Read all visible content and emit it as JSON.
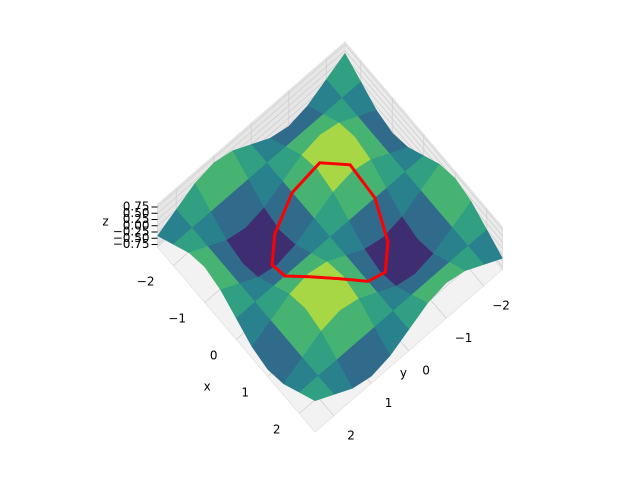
{
  "chart_data": {
    "type": "surface3d",
    "colormap": "viridis",
    "x_label": "x",
    "y_label": "y",
    "z_label": "z",
    "xlim": [
      -2.5,
      2.5
    ],
    "ylim": [
      -2.5,
      2.5
    ],
    "zlim": [
      -0.85,
      0.85
    ],
    "xticks": [
      {
        "value": -2,
        "label": "−2"
      },
      {
        "value": -1,
        "label": "−1"
      },
      0,
      1,
      2
    ],
    "yticks": [
      {
        "value": -2,
        "label": "−2"
      },
      {
        "value": -1,
        "label": "−1"
      },
      0,
      1,
      2
    ],
    "zticks": [
      {
        "value": -0.75,
        "label": "−0.75"
      },
      {
        "value": -0.5,
        "label": "−0.50"
      },
      {
        "value": -0.25,
        "label": "−0.25"
      },
      {
        "value": 0,
        "label": "0.00"
      },
      {
        "value": 0.25,
        "label": "0.25"
      },
      {
        "value": 0.5,
        "label": "0.50"
      },
      0.75
    ],
    "x": [
      -2.5,
      -2,
      -1.5,
      -1,
      -0.5,
      0,
      0.5,
      1,
      1.5,
      2,
      2.5
    ],
    "y": [
      -2.5,
      -2,
      -1.5,
      -1,
      -0.5,
      0,
      0.5,
      1,
      1.5,
      2,
      2.5
    ],
    "z": [
      [
        0.4,
        0,
        -0.4,
        -0.57,
        -0.4,
        0,
        0.4,
        0.57,
        0.4,
        0,
        -0.4
      ],
      [
        0,
        0,
        0,
        0,
        0,
        0,
        0,
        0,
        0,
        0,
        0
      ],
      [
        -0.4,
        0,
        0.4,
        0.57,
        0.4,
        0,
        -0.4,
        -0.57,
        -0.4,
        0,
        0.4
      ],
      [
        -0.57,
        0,
        0.57,
        0.8,
        0.57,
        0,
        -0.57,
        -0.8,
        -0.57,
        0,
        0.57
      ],
      [
        -0.4,
        0,
        0.4,
        0.57,
        0.4,
        0,
        -0.4,
        -0.57,
        -0.4,
        0,
        0.4
      ],
      [
        0,
        0,
        0,
        0,
        0,
        0,
        0,
        0,
        0,
        0,
        0
      ],
      [
        0.4,
        0,
        -0.4,
        -0.57,
        -0.4,
        0,
        0.4,
        0.57,
        0.4,
        0,
        -0.4
      ],
      [
        0.57,
        0,
        -0.57,
        -0.8,
        -0.57,
        0,
        0.57,
        0.8,
        0.57,
        0,
        -0.57
      ],
      [
        0.4,
        0,
        -0.4,
        -0.57,
        -0.4,
        0,
        0.4,
        0.57,
        0.4,
        0,
        -0.4
      ],
      [
        0,
        0,
        0,
        0,
        0,
        0,
        0,
        0,
        0,
        0,
        0
      ],
      [
        -0.4,
        0,
        0.4,
        0.57,
        0.4,
        0,
        -0.4,
        -0.57,
        -0.4,
        0,
        0.4
      ]
    ],
    "curve": {
      "color": "red",
      "x": [
        1.2,
        1.04,
        0.6,
        0,
        -0.6,
        -1.04,
        -1.2,
        -1.04,
        -0.6,
        0,
        0.6,
        1.04
      ],
      "y": [
        0,
        0.6,
        1.04,
        1.2,
        1.04,
        0.6,
        0,
        -0.6,
        -1.04,
        -1.2,
        -1.04,
        -0.6
      ],
      "z": [
        0,
        0.65,
        0.65,
        0,
        -0.65,
        -0.65,
        0,
        0.65,
        0.65,
        0,
        -0.65,
        -0.65
      ]
    }
  }
}
